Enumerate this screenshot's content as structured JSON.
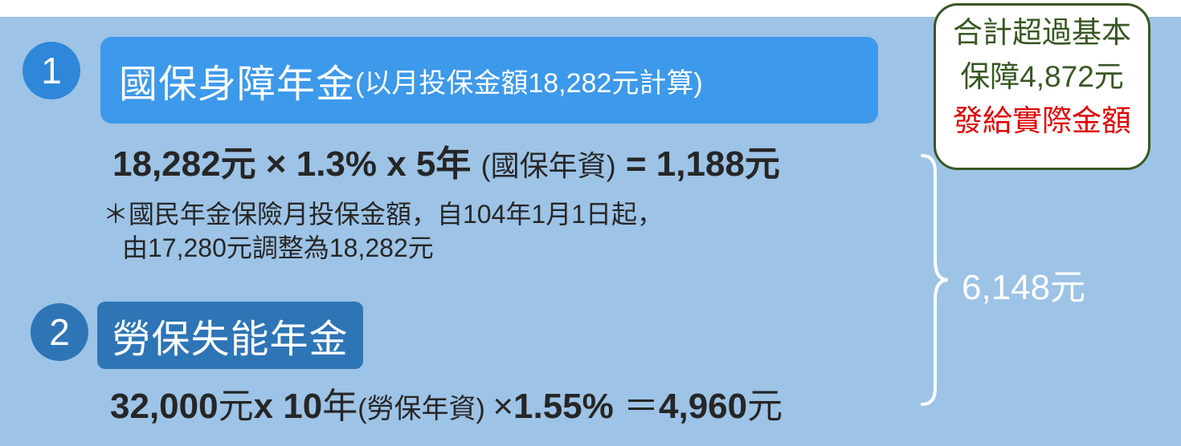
{
  "item1": {
    "number": "1",
    "title": "國保身障年金",
    "title_note": "(以月投保金額18,282元計算)",
    "formula_main": "18,282元 × 1.3% x 5年 ",
    "formula_paren": "(國保年資)",
    "formula_result": " = 1,188元",
    "note_line1": "＊國民年金保險月投保金額，自104年1月1日起，",
    "note_line2": "由17,280元調整為18,282元"
  },
  "item2": {
    "number": "2",
    "title": "勞保失能年金",
    "formula_amount": "32,000",
    "formula_unit": "元",
    "formula_x": "x 10",
    "formula_year": "年",
    "formula_paren": "(勞保年資) ",
    "formula_times": "×",
    "formula_rate": "1.55% ",
    "formula_eq": "＝",
    "formula_result": "4,960",
    "formula_result_unit": "元"
  },
  "total": "6,148元",
  "callout": {
    "line1": "合計超過基本",
    "line2": "保障4,872元",
    "line3": "發給實際金額"
  },
  "colors": {
    "panel": "#9dc3e6",
    "bar1": "#3d99ea",
    "bar2": "#2e75b6",
    "callout_border": "#385723",
    "callout_red": "#e00000"
  }
}
